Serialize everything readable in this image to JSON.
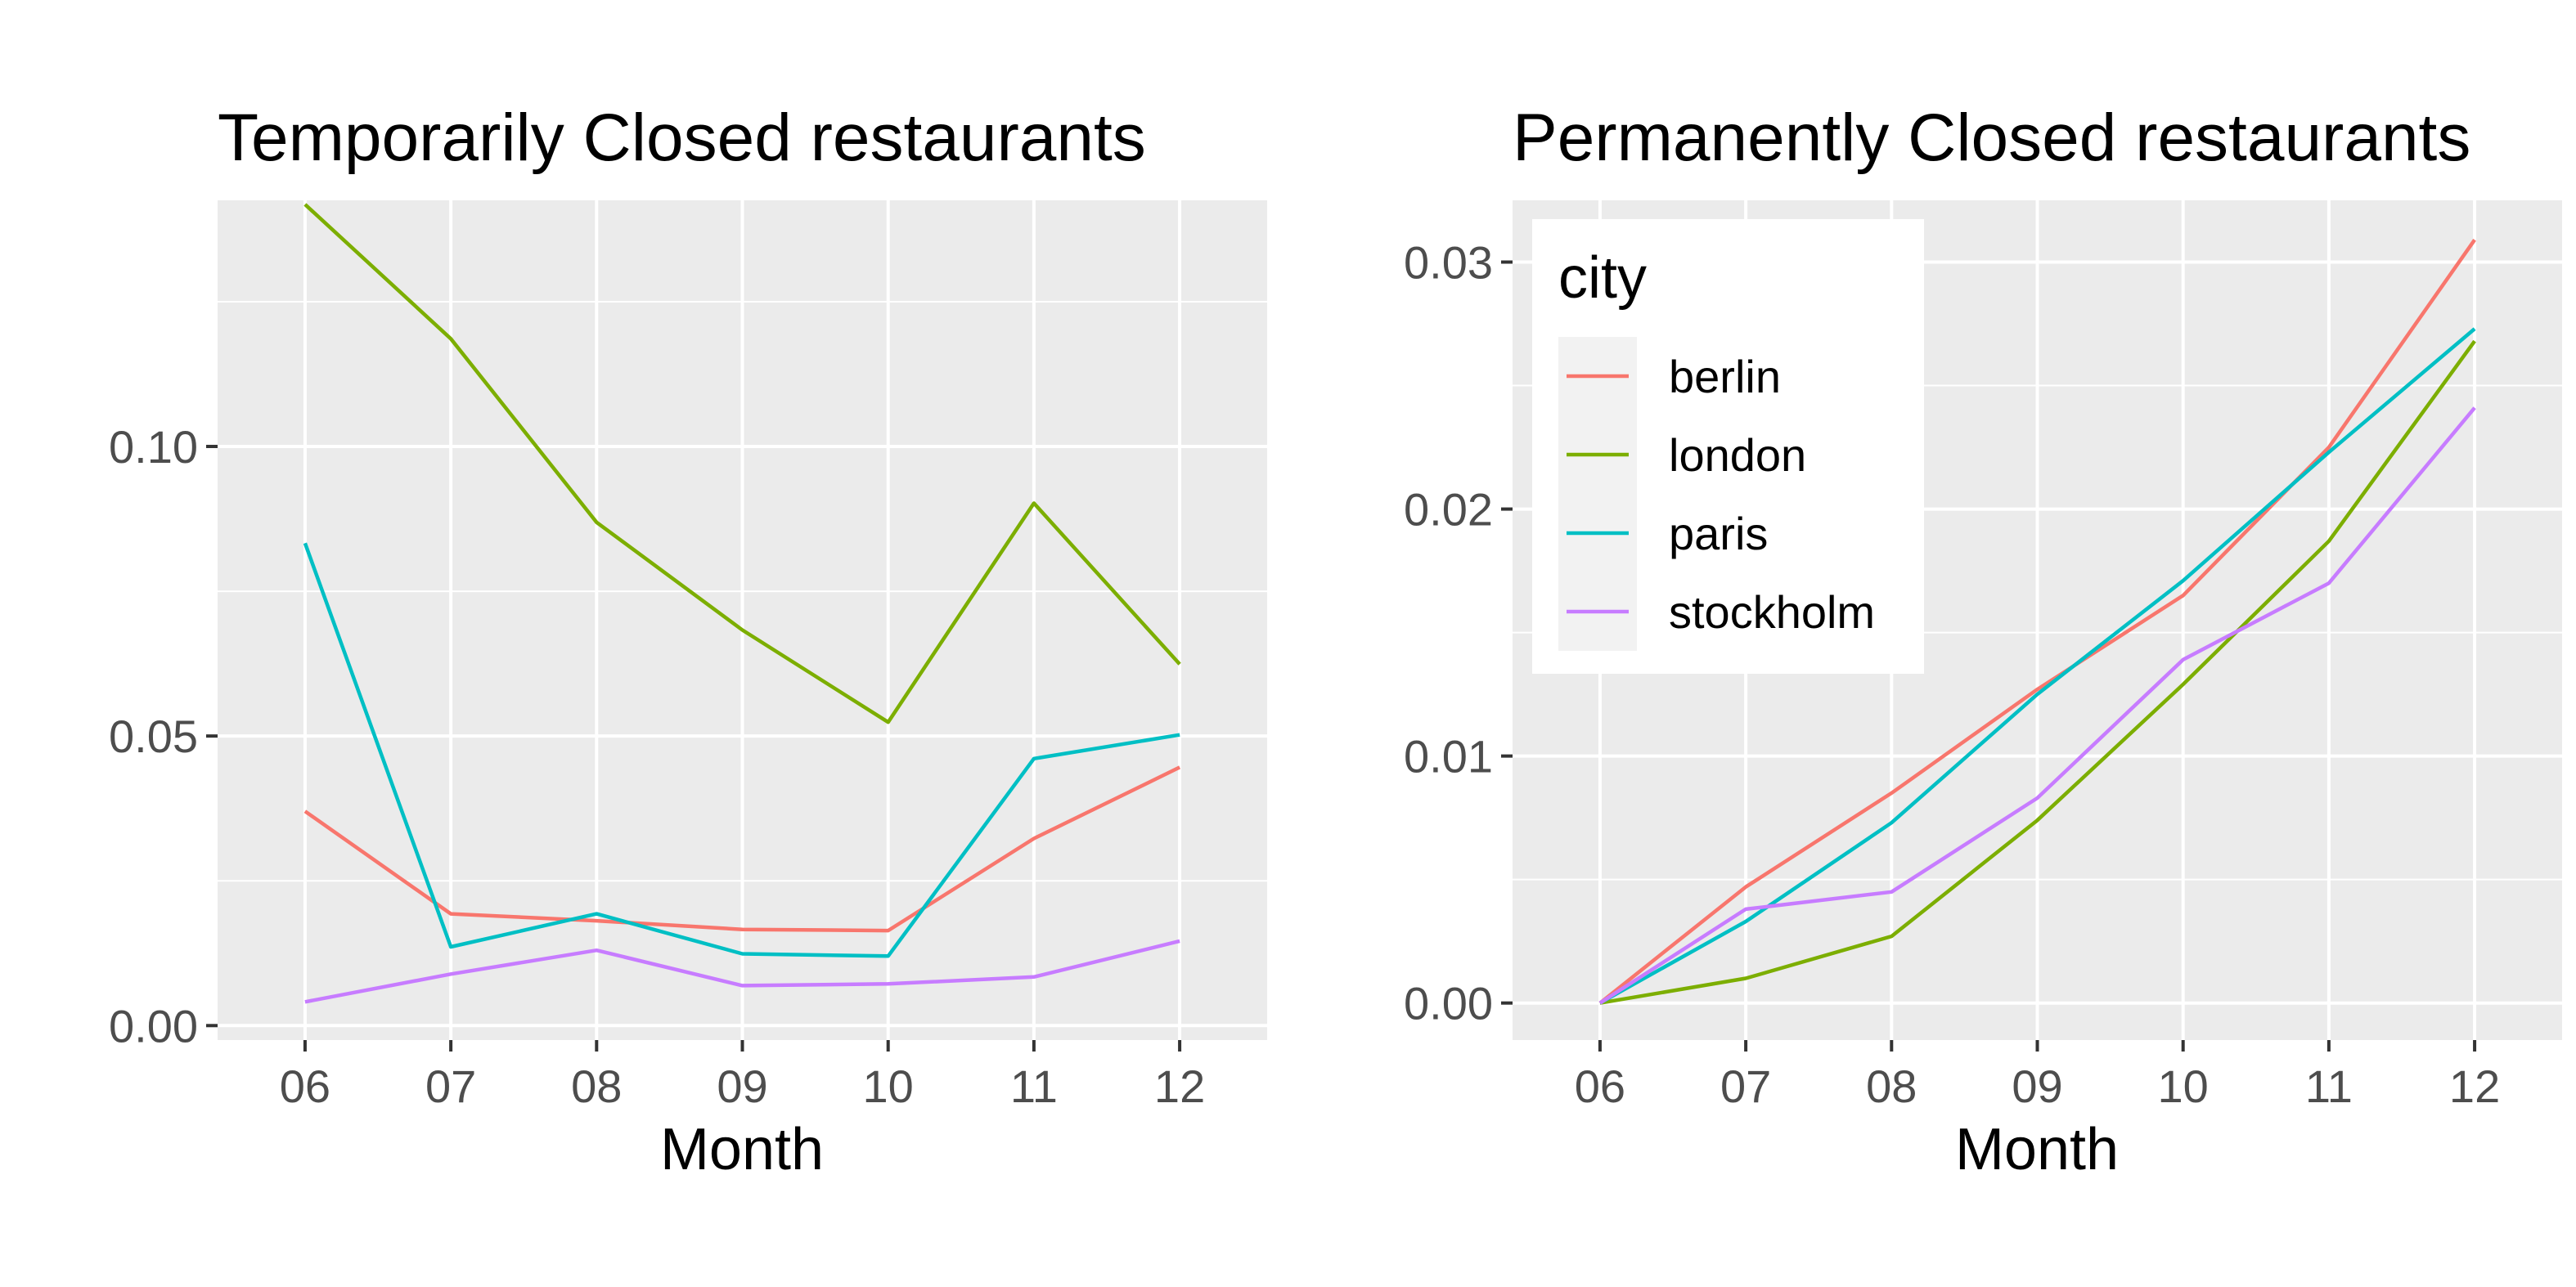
{
  "chart_data": [
    {
      "type": "line",
      "title": "Temporarily Closed restaurants",
      "xlabel": "Month",
      "ylabel": "",
      "categories": [
        "06",
        "07",
        "08",
        "09",
        "10",
        "11",
        "12"
      ],
      "ylim": [
        -0.0025,
        0.1425
      ],
      "yticks": [
        0.0,
        0.05,
        0.1
      ],
      "ytick_labels": [
        "0.00",
        "0.05",
        "0.10"
      ],
      "grid": true,
      "series": [
        {
          "name": "berlin",
          "color": "#F8766D",
          "values": [
            0.037,
            0.0193,
            0.0181,
            0.0166,
            0.0164,
            0.0323,
            0.0446
          ]
        },
        {
          "name": "london",
          "color": "#7CAE00",
          "values": [
            0.1418,
            0.1186,
            0.0869,
            0.0683,
            0.0524,
            0.0902,
            0.0624
          ]
        },
        {
          "name": "paris",
          "color": "#00BFC4",
          "values": [
            0.0833,
            0.0136,
            0.0193,
            0.0124,
            0.012,
            0.0461,
            0.0502
          ]
        },
        {
          "name": "stockholm",
          "color": "#C77CFF",
          "values": [
            0.0041,
            0.0089,
            0.013,
            0.0069,
            0.0072,
            0.0084,
            0.0146
          ]
        }
      ]
    },
    {
      "type": "line",
      "title": "Permanently Closed restaurants",
      "xlabel": "Month",
      "ylabel": "",
      "categories": [
        "06",
        "07",
        "08",
        "09",
        "10",
        "11",
        "12"
      ],
      "ylim": [
        -0.0015,
        0.0325
      ],
      "yticks": [
        0.0,
        0.01,
        0.02,
        0.03
      ],
      "ytick_labels": [
        "0.00",
        "0.01",
        "0.02",
        "0.03"
      ],
      "grid": true,
      "legend": {
        "title": "city",
        "position": "top-left",
        "entries": [
          "berlin",
          "london",
          "paris",
          "stockholm"
        ]
      },
      "series": [
        {
          "name": "berlin",
          "color": "#F8766D",
          "values": [
            0.0,
            0.0047,
            0.0085,
            0.0127,
            0.0165,
            0.0225,
            0.0309
          ]
        },
        {
          "name": "london",
          "color": "#7CAE00",
          "values": [
            0.0,
            0.001,
            0.0027,
            0.0074,
            0.0129,
            0.0187,
            0.0268
          ]
        },
        {
          "name": "paris",
          "color": "#00BFC4",
          "values": [
            0.0,
            0.0033,
            0.0073,
            0.0125,
            0.0171,
            0.0223,
            0.0273
          ]
        },
        {
          "name": "stockholm",
          "color": "#C77CFF",
          "values": [
            0.0,
            0.0038,
            0.0045,
            0.0083,
            0.0139,
            0.017,
            0.0241
          ]
        }
      ]
    }
  ]
}
